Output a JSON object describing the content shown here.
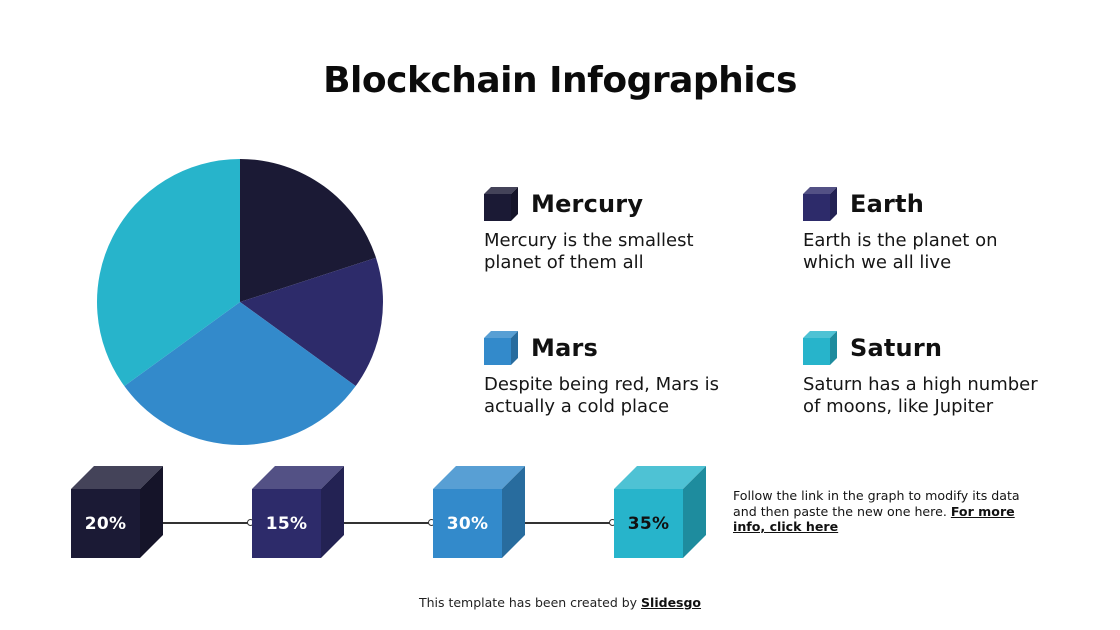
{
  "title": "Blockchain Infographics",
  "colors": {
    "mercury": "#1b1a35",
    "earth": "#2d2b6a",
    "mars": "#338acb",
    "saturn": "#27b4cb"
  },
  "legend": [
    {
      "name": "Mercury",
      "description_line1": "Mercury is the smallest",
      "description_line2": "planet of them all",
      "color": "#1b1a35"
    },
    {
      "name": "Earth",
      "description_line1": "Earth is the planet on",
      "description_line2": "which we all live",
      "color": "#2d2b6a"
    },
    {
      "name": "Mars",
      "description_line1": "Despite being red, Mars is",
      "description_line2": "actually a cold place",
      "color": "#338acb"
    },
    {
      "name": "Saturn",
      "description_line1": "Saturn has a high number",
      "description_line2": "of moons, like Jupiter",
      "color": "#27b4cb"
    }
  ],
  "cubes": [
    {
      "label": "20%",
      "text_color": "#ffffff"
    },
    {
      "label": "15%",
      "text_color": "#ffffff"
    },
    {
      "label": "30%",
      "text_color": "#ffffff"
    },
    {
      "label": "35%",
      "text_color": "#111111"
    }
  ],
  "note": {
    "text": "Follow the link in the graph to modify its data and then paste the new one here. ",
    "link": "For more info, click here"
  },
  "footer": {
    "text": "This template has been created by ",
    "link": "Slidesgo"
  },
  "chart_data": {
    "type": "pie",
    "title": "Blockchain Infographics",
    "categories": [
      "Mercury",
      "Earth",
      "Mars",
      "Saturn"
    ],
    "values": [
      20,
      15,
      30,
      35
    ],
    "unit": "%",
    "colors": [
      "#1b1a35",
      "#2d2b6a",
      "#338acb",
      "#27b4cb"
    ],
    "start_angle": "12 o'clock, clockwise",
    "legend_position": "right"
  }
}
